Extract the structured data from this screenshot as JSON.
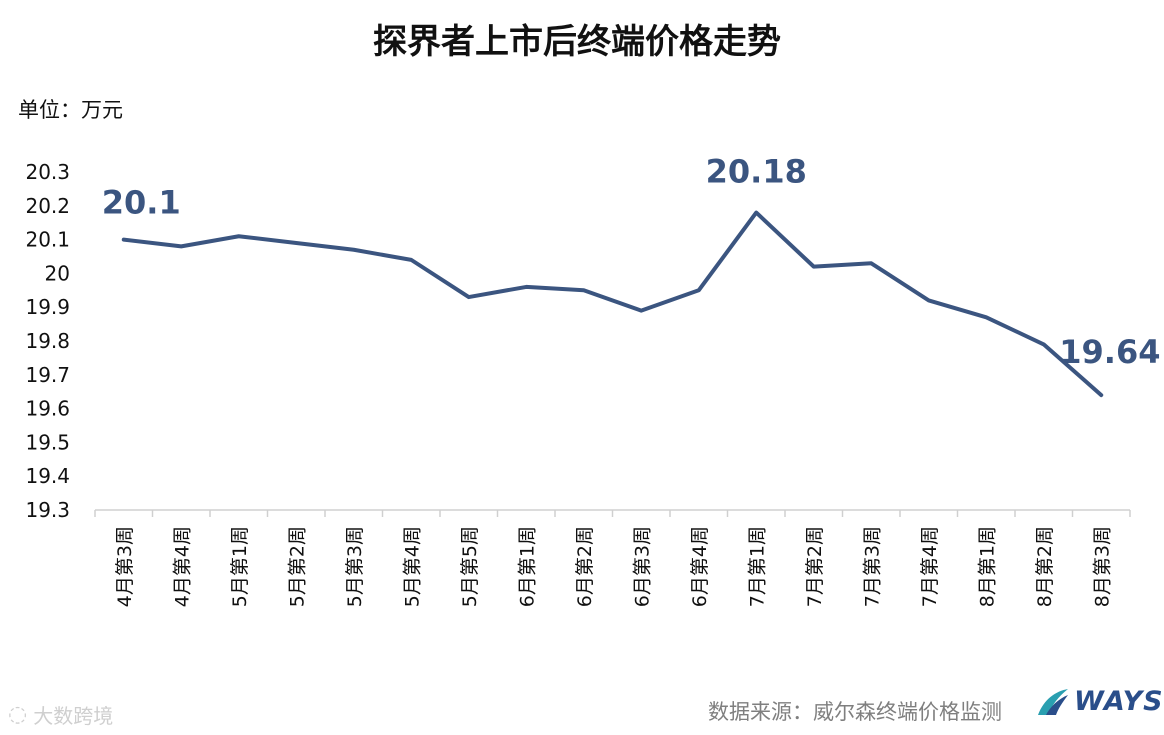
{
  "chart_data": {
    "type": "line",
    "title": "探界者上市后终端价格走势",
    "unit": "单位：万元",
    "categories": [
      "4月第3周",
      "4月第4周",
      "5月第1周",
      "5月第2周",
      "5月第3周",
      "5月第4周",
      "5月第5周",
      "6月第1周",
      "6月第2周",
      "6月第3周",
      "6月第4周",
      "7月第1周",
      "7月第2周",
      "7月第3周",
      "7月第4周",
      "8月第1周",
      "8月第2周",
      "8月第3周"
    ],
    "series": [
      {
        "values": [
          20.1,
          20.08,
          20.11,
          20.09,
          20.07,
          20.04,
          19.93,
          19.96,
          19.95,
          19.89,
          19.95,
          20.18,
          20.02,
          20.03,
          19.92,
          19.87,
          19.79,
          19.64
        ]
      }
    ],
    "ylim": [
      19.3,
      20.3
    ],
    "yticks": [
      "20.3",
      "20.2",
      "20.1",
      "20",
      "19.9",
      "19.8",
      "19.7",
      "19.6",
      "19.5",
      "19.4",
      "19.3"
    ],
    "annotations": [
      {
        "index": 0,
        "text": "20.1"
      },
      {
        "index": 11,
        "text": "20.18"
      },
      {
        "index": 17,
        "text": "19.64"
      }
    ],
    "line_color": "#3b5580",
    "grid": false
  },
  "footer": {
    "source": "数据来源：威尔森终端价格监测",
    "watermark": "大数跨境",
    "logo_text": "WAYS"
  }
}
